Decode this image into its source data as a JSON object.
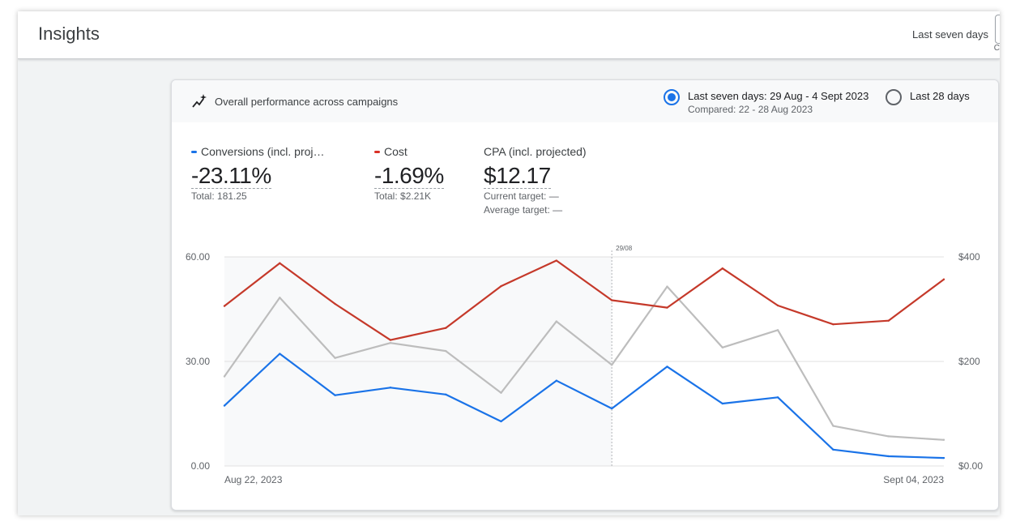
{
  "header": {
    "title": "Insights",
    "date_range_label": "Last seven days",
    "date_range_sub": "C"
  },
  "card": {
    "title": "Overall performance across campaigns",
    "title_icon": "sparkle-trend-icon",
    "options": [
      {
        "label": "Last seven days: 29 Aug - 4 Sept 2023",
        "sub": "Compared: 22 - 28 Aug 2023",
        "selected": true
      },
      {
        "label": "Last 28 days",
        "selected": false
      }
    ]
  },
  "metrics": [
    {
      "label": "Conversions (incl. projected)",
      "value": "-23.11%",
      "sub1": "Total: 181.25",
      "color": "#1a73e8"
    },
    {
      "label": "Cost",
      "value": "-1.69%",
      "sub1": "Total: $2.21K",
      "color": "#d93025"
    },
    {
      "label": "CPA (incl. projected)",
      "value": "$12.17",
      "sub1": "Current target: —",
      "sub2": "Average target: —"
    }
  ],
  "colors": {
    "conversions": "#1a73e8",
    "cost": "#c5392a",
    "comparison": "#bdbdbd",
    "shade": "#f8f9fa",
    "grid": "#e0e0e0"
  },
  "chart_data": {
    "type": "line",
    "x": [
      "Aug 22, 2023",
      "Aug 23, 2023",
      "Aug 24, 2023",
      "Aug 25, 2023",
      "Aug 26, 2023",
      "Aug 27, 2023",
      "Aug 28, 2023",
      "Aug 29, 2023",
      "Aug 30, 2023",
      "Aug 31, 2023",
      "Sept 01, 2023",
      "Sept 02, 2023",
      "Sept 03, 2023",
      "Sept 04, 2023"
    ],
    "x_tick_labels": [
      "Aug 22, 2023",
      "Sept 04, 2023"
    ],
    "marker_label": "29/08",
    "marker_index": 7,
    "y_left": {
      "ticks": [
        "0.00",
        "30.00",
        "60.00"
      ],
      "range": [
        0,
        60
      ]
    },
    "y_right": {
      "ticks": [
        "$0.00",
        "$200",
        "$400"
      ],
      "range": [
        0,
        400
      ]
    },
    "series": [
      {
        "key": "comparison",
        "axis": "left",
        "values": [
          25.7,
          48.3,
          31.0,
          35.3,
          33.0,
          21.0,
          41.5,
          29.0,
          51.5,
          34.0,
          39.0,
          11.5,
          8.5,
          7.5
        ]
      },
      {
        "key": "conversions",
        "axis": "left",
        "values": [
          17.3,
          32.2,
          20.3,
          22.5,
          20.5,
          12.8,
          24.5,
          16.5,
          28.5,
          17.9,
          19.7,
          4.7,
          2.8,
          2.3
        ]
      },
      {
        "name": "Cost",
        "axis": "right",
        "values": [
          306,
          388,
          310,
          241,
          264,
          344,
          393,
          317,
          303,
          378,
          307,
          271,
          278,
          357
        ]
      }
    ]
  }
}
